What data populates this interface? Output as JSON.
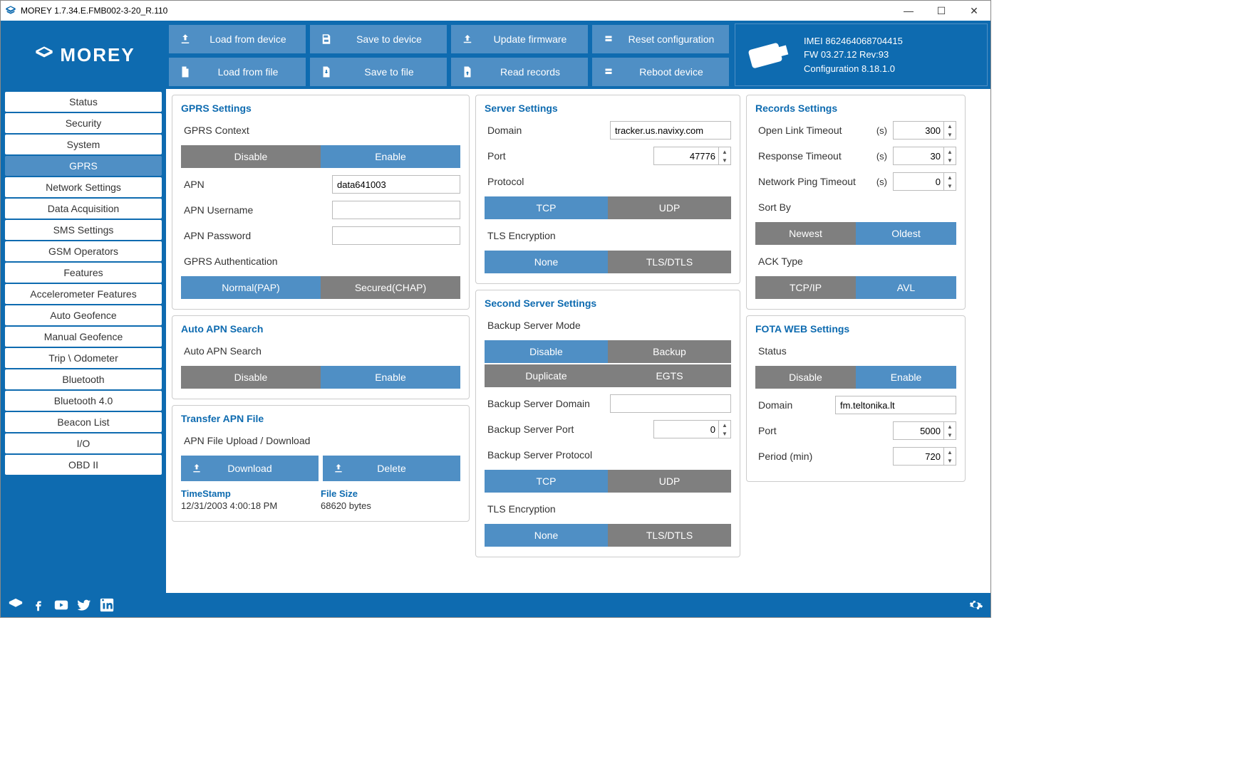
{
  "window": {
    "title": "MOREY 1.7.34.E.FMB002-3-20_R.110"
  },
  "logo": "MOREY",
  "toolbar": [
    {
      "id": "load-device",
      "label": "Load from device"
    },
    {
      "id": "save-device",
      "label": "Save to device"
    },
    {
      "id": "update-fw",
      "label": "Update firmware"
    },
    {
      "id": "reset-cfg",
      "label": "Reset configuration"
    },
    {
      "id": "load-file",
      "label": "Load from file"
    },
    {
      "id": "save-file",
      "label": "Save to file"
    },
    {
      "id": "read-records",
      "label": "Read records"
    },
    {
      "id": "reboot",
      "label": "Reboot device"
    }
  ],
  "device": {
    "imei_label": "IMEI",
    "imei": "862464068704415",
    "fw_label": "FW",
    "fw": "03.27.12 Rev:93",
    "cfg_label": "Configuration",
    "cfg": "8.18.1.0"
  },
  "sidebar": [
    "Status",
    "Security",
    "System",
    "GPRS",
    "Network Settings",
    "Data Acquisition",
    "SMS Settings",
    "GSM Operators",
    "Features",
    "Accelerometer Features",
    "Auto Geofence",
    "Manual Geofence",
    "Trip \\ Odometer",
    "Bluetooth",
    "Bluetooth 4.0",
    "Beacon List",
    "I/O",
    "OBD II"
  ],
  "sidebar_active": 3,
  "gprs": {
    "title": "GPRS Settings",
    "context_label": "GPRS Context",
    "context_opts": [
      "Disable",
      "Enable"
    ],
    "context_sel": 1,
    "apn_label": "APN",
    "apn": "data641003",
    "apn_user_label": "APN Username",
    "apn_user": "",
    "apn_pass_label": "APN Password",
    "apn_pass": "",
    "auth_label": "GPRS Authentication",
    "auth_opts": [
      "Normal(PAP)",
      "Secured(CHAP)"
    ],
    "auth_sel": 0
  },
  "autoapn": {
    "title": "Auto APN Search",
    "label": "Auto APN Search",
    "opts": [
      "Disable",
      "Enable"
    ],
    "sel": 1
  },
  "transfer": {
    "title": "Transfer APN File",
    "label": "APN File Upload / Download",
    "download": "Download",
    "delete": "Delete",
    "ts_label": "TimeStamp",
    "ts": "12/31/2003 4:00:18 PM",
    "size_label": "File Size",
    "size": "68620 bytes"
  },
  "server": {
    "title": "Server Settings",
    "domain_label": "Domain",
    "domain": "tracker.us.navixy.com",
    "port_label": "Port",
    "port": "47776",
    "proto_label": "Protocol",
    "proto_opts": [
      "TCP",
      "UDP"
    ],
    "proto_sel": 0,
    "tls_label": "TLS Encryption",
    "tls_opts": [
      "None",
      "TLS/DTLS"
    ],
    "tls_sel": 0
  },
  "server2": {
    "title": "Second Server Settings",
    "mode_label": "Backup Server Mode",
    "mode_opts": [
      "Disable",
      "Backup",
      "Duplicate",
      "EGTS"
    ],
    "mode_sel": 0,
    "domain_label": "Backup Server Domain",
    "domain": "",
    "port_label": "Backup Server Port",
    "port": "0",
    "proto_label": "Backup Server Protocol",
    "proto_opts": [
      "TCP",
      "UDP"
    ],
    "proto_sel": 0,
    "tls_label": "TLS Encryption",
    "tls_opts": [
      "None",
      "TLS/DTLS"
    ],
    "tls_sel": 0
  },
  "records": {
    "title": "Records Settings",
    "open_label": "Open Link Timeout",
    "open_unit": "(s)",
    "open": "300",
    "resp_label": "Response Timeout",
    "resp_unit": "(s)",
    "resp": "30",
    "ping_label": "Network Ping Timeout",
    "ping_unit": "(s)",
    "ping": "0",
    "sort_label": "Sort By",
    "sort_opts": [
      "Newest",
      "Oldest"
    ],
    "sort_sel": 1,
    "ack_label": "ACK Type",
    "ack_opts": [
      "TCP/IP",
      "AVL"
    ],
    "ack_sel": 1
  },
  "fota": {
    "title": "FOTA WEB Settings",
    "status_label": "Status",
    "status_opts": [
      "Disable",
      "Enable"
    ],
    "status_sel": 1,
    "domain_label": "Domain",
    "domain": "fm.teltonika.lt",
    "port_label": "Port",
    "port": "5000",
    "period_label": "Period (min)",
    "period": "720"
  },
  "colors": {
    "primary": "#0e6bb0",
    "btn": "#4f8fc5",
    "grey": "#7f7f7f"
  }
}
